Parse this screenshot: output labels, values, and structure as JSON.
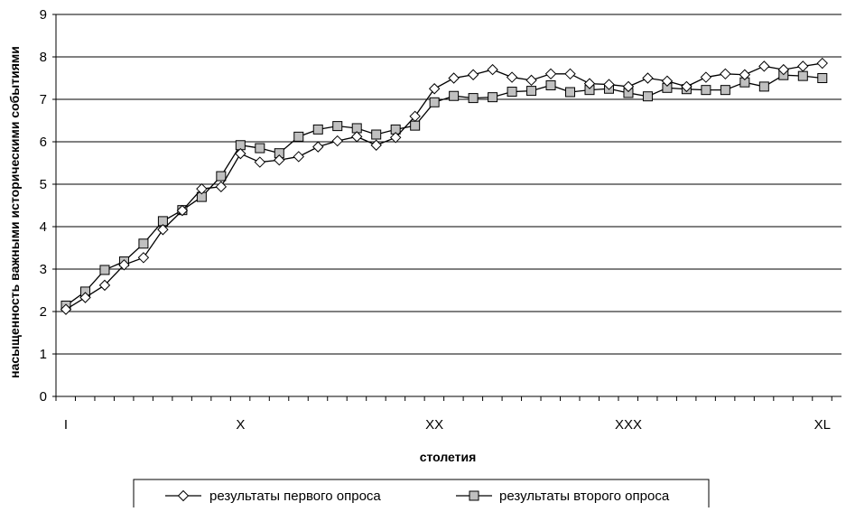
{
  "chart_data": {
    "type": "line",
    "title": "",
    "xlabel": "столетия",
    "ylabel": "насыщенность важными историческими событиями",
    "ylim": [
      0,
      9
    ],
    "y_ticks": [
      "0",
      "1",
      "2",
      "3",
      "4",
      "5",
      "6",
      "7",
      "8",
      "9"
    ],
    "x_tick_labels": [
      {
        "index": 1,
        "label": "I"
      },
      {
        "index": 10,
        "label": "X"
      },
      {
        "index": 20,
        "label": "XX"
      },
      {
        "index": 30,
        "label": "XXX"
      },
      {
        "index": 40,
        "label": "XL"
      }
    ],
    "x": [
      1,
      2,
      3,
      4,
      5,
      6,
      7,
      8,
      9,
      10,
      11,
      12,
      13,
      14,
      15,
      16,
      17,
      18,
      19,
      20,
      21,
      22,
      23,
      24,
      25,
      26,
      27,
      28,
      29,
      30,
      31,
      32,
      33,
      34,
      35,
      36,
      37,
      38,
      39,
      40
    ],
    "grid": true,
    "legend_position": "bottom",
    "series": [
      {
        "name": "результаты первого опроса",
        "marker": "diamond",
        "marker_fill": "#ffffff",
        "values": [
          2.05,
          2.33,
          2.62,
          3.1,
          3.27,
          3.93,
          4.38,
          4.89,
          4.94,
          5.72,
          5.52,
          5.57,
          5.65,
          5.88,
          6.02,
          6.12,
          5.92,
          6.1,
          6.6,
          7.25,
          7.5,
          7.58,
          7.7,
          7.52,
          7.45,
          7.6,
          7.6,
          7.37,
          7.35,
          7.3,
          7.5,
          7.43,
          7.3,
          7.52,
          7.6,
          7.58,
          7.78,
          7.7,
          7.78,
          7.85
        ]
      },
      {
        "name": "результаты второго опроса",
        "marker": "square",
        "marker_fill": "#c0c0c0",
        "values": [
          2.14,
          2.47,
          2.98,
          3.18,
          3.6,
          4.13,
          4.39,
          4.7,
          5.19,
          5.92,
          5.85,
          5.73,
          6.12,
          6.29,
          6.37,
          6.32,
          6.17,
          6.29,
          6.38,
          6.93,
          7.08,
          7.03,
          7.05,
          7.18,
          7.2,
          7.33,
          7.17,
          7.22,
          7.25,
          7.15,
          7.07,
          7.27,
          7.24,
          7.22,
          7.22,
          7.4,
          7.3,
          7.57,
          7.55,
          7.5
        ]
      }
    ]
  }
}
